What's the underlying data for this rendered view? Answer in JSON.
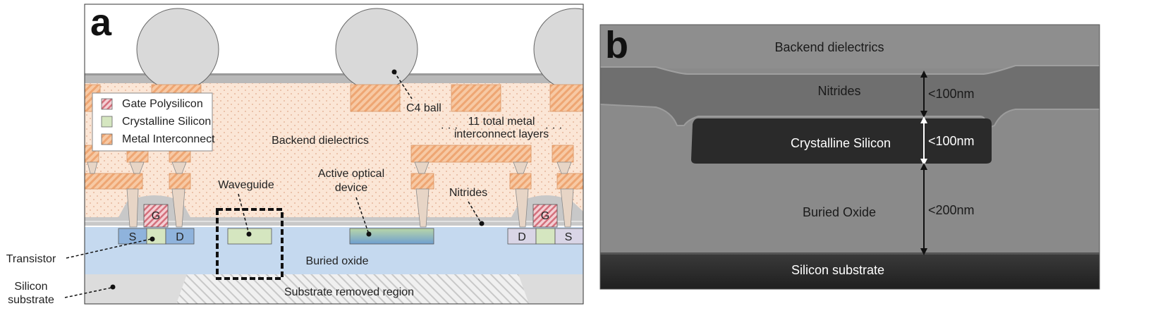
{
  "panel_a": {
    "letter": "a",
    "legend": {
      "gate": "Gate Polysilicon",
      "crystalline": "Crystalline Silicon",
      "metal": "Metal Interconnect"
    },
    "labels": {
      "c4_ball": "C4 ball",
      "metal_layers_line1": "11 total metal",
      "metal_layers_line2": "interconnect layers",
      "backend": "Backend dielectrics",
      "waveguide": "Waveguide",
      "active_line1": "Active optical",
      "active_line2": "device",
      "nitrides": "Nitrides",
      "buried_oxide": "Buried oxide",
      "substrate_removed": "Substrate removed region",
      "transistor": "Transistor",
      "silicon_substrate_line1": "Silicon",
      "silicon_substrate_line2": "substrate",
      "gate_left": "G",
      "gate_right": "G",
      "source_left": "S",
      "drain_left": "D",
      "drain_right": "D",
      "source_right": "S",
      "dots_left": "· · ·",
      "dots_right": "· · ·"
    },
    "colors": {
      "backend": "#fbe6d6",
      "metal": "#f4b98c",
      "buried_oxide": "#c5d9ef",
      "substrate": "#dcdcdc",
      "crystalline": "#d5e6c0",
      "gate": "#e6a3aa",
      "c4": "#d9d9d9",
      "nitride": "#b9b9b9"
    }
  },
  "panel_b": {
    "letter": "b",
    "labels": {
      "backend": "Backend dielectrics",
      "nitrides": "Nitrides",
      "crystalline": "Crystalline Silicon",
      "buried_oxide": "Buried Oxide",
      "substrate": "Silicon substrate",
      "dim_nitrides": "<100nm",
      "dim_crystalline": "<100nm",
      "dim_oxide": "<200nm"
    }
  }
}
